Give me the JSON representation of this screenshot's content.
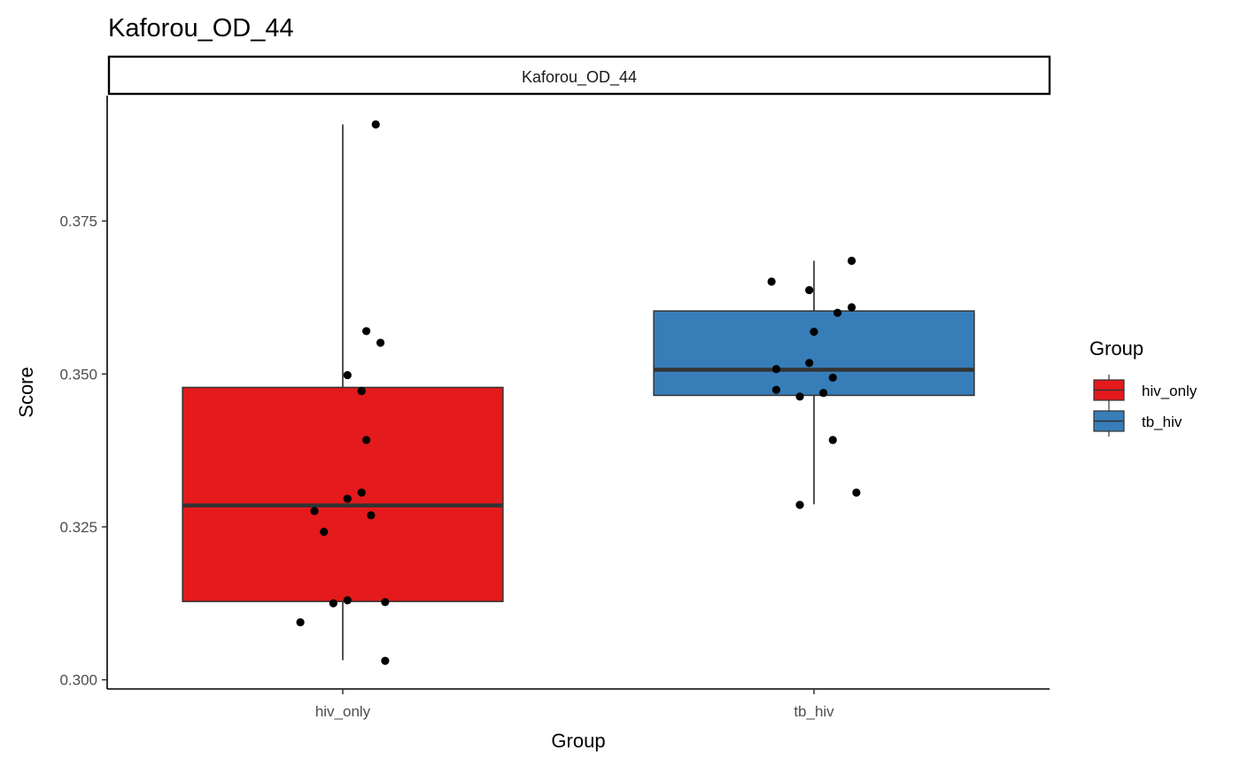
{
  "title": "Kaforou_OD_44",
  "chart_data": {
    "type": "box",
    "title": "Kaforou_OD_44",
    "facet_label": "Kaforou_OD_44",
    "xlabel": "Group",
    "ylabel": "Score",
    "categories": [
      "hiv_only",
      "tb_hiv"
    ],
    "ylim": [
      0.2985,
      0.3955
    ],
    "yticks": [
      0.3,
      0.325,
      0.35,
      0.375
    ],
    "ytick_labels": [
      "0.300",
      "0.325",
      "0.350",
      "0.375"
    ],
    "legend": {
      "title": "Group",
      "position": "right",
      "entries": [
        {
          "label": "hiv_only",
          "color": "#e41a1c"
        },
        {
          "label": "tb_hiv",
          "color": "#377eb8"
        }
      ]
    },
    "boxes": [
      {
        "category": "hiv_only",
        "color": "#e41a1c",
        "whisker_low": 0.3032,
        "q1": 0.3128,
        "median": 0.3285,
        "q3": 0.3478,
        "whisker_high": 0.3908
      },
      {
        "category": "tb_hiv",
        "color": "#377eb8",
        "whisker_low": 0.3287,
        "q1": 0.3465,
        "median": 0.3507,
        "q3": 0.3603,
        "whisker_high": 0.3685
      }
    ],
    "points": [
      {
        "category": "hiv_only",
        "jitter": 0.07,
        "y": 0.3908
      },
      {
        "category": "hiv_only",
        "jitter": 0.05,
        "y": 0.357
      },
      {
        "category": "hiv_only",
        "jitter": 0.08,
        "y": 0.3551
      },
      {
        "category": "hiv_only",
        "jitter": 0.01,
        "y": 0.3498
      },
      {
        "category": "hiv_only",
        "jitter": 0.04,
        "y": 0.3472
      },
      {
        "category": "hiv_only",
        "jitter": 0.05,
        "y": 0.3392
      },
      {
        "category": "hiv_only",
        "jitter": 0.04,
        "y": 0.3306
      },
      {
        "category": "hiv_only",
        "jitter": 0.01,
        "y": 0.3296
      },
      {
        "category": "hiv_only",
        "jitter": -0.06,
        "y": 0.3276
      },
      {
        "category": "hiv_only",
        "jitter": 0.06,
        "y": 0.3269
      },
      {
        "category": "hiv_only",
        "jitter": -0.04,
        "y": 0.3242
      },
      {
        "category": "hiv_only",
        "jitter": 0.01,
        "y": 0.313
      },
      {
        "category": "hiv_only",
        "jitter": -0.02,
        "y": 0.3125
      },
      {
        "category": "hiv_only",
        "jitter": 0.09,
        "y": 0.3127
      },
      {
        "category": "hiv_only",
        "jitter": -0.09,
        "y": 0.3094
      },
      {
        "category": "hiv_only",
        "jitter": 0.09,
        "y": 0.3031
      },
      {
        "category": "tb_hiv",
        "jitter": 0.08,
        "y": 0.3685
      },
      {
        "category": "tb_hiv",
        "jitter": -0.09,
        "y": 0.3651
      },
      {
        "category": "tb_hiv",
        "jitter": -0.01,
        "y": 0.3637
      },
      {
        "category": "tb_hiv",
        "jitter": 0.08,
        "y": 0.3609
      },
      {
        "category": "tb_hiv",
        "jitter": 0.05,
        "y": 0.36
      },
      {
        "category": "tb_hiv",
        "jitter": 0.0,
        "y": 0.3569
      },
      {
        "category": "tb_hiv",
        "jitter": -0.01,
        "y": 0.3518
      },
      {
        "category": "tb_hiv",
        "jitter": -0.08,
        "y": 0.3508
      },
      {
        "category": "tb_hiv",
        "jitter": 0.04,
        "y": 0.3494
      },
      {
        "category": "tb_hiv",
        "jitter": -0.08,
        "y": 0.3474
      },
      {
        "category": "tb_hiv",
        "jitter": 0.02,
        "y": 0.3469
      },
      {
        "category": "tb_hiv",
        "jitter": -0.03,
        "y": 0.3463
      },
      {
        "category": "tb_hiv",
        "jitter": 0.04,
        "y": 0.3392
      },
      {
        "category": "tb_hiv",
        "jitter": 0.09,
        "y": 0.3306
      },
      {
        "category": "tb_hiv",
        "jitter": -0.03,
        "y": 0.3286
      }
    ]
  }
}
